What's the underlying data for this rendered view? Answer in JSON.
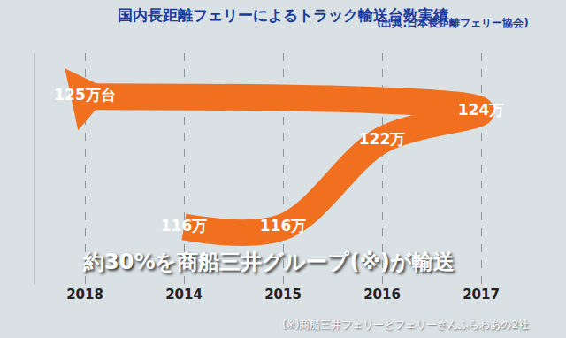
{
  "chart_data": {
    "type": "line",
    "title": "国内長距離フェリーによるトラック輸送台数実績",
    "subtitle": "(出典:日本長距離フェリー協会)",
    "categories": [
      "2014",
      "2015",
      "2016",
      "2017",
      "2018"
    ],
    "values": [
      116,
      116,
      122,
      124,
      125
    ],
    "value_labels": [
      "116万",
      "116万",
      "122万",
      "124万",
      "125万台"
    ],
    "color": "#f07020",
    "ylim": [
      112,
      128
    ],
    "grid": true,
    "data_labels": true,
    "tick_labels": "x",
    "marker": "arrow",
    "annotations": [
      "約30%を商船三井グループ(※)が輸送",
      "(※)商船三井フェリーとフェリーさんふらわあの2社"
    ]
  }
}
